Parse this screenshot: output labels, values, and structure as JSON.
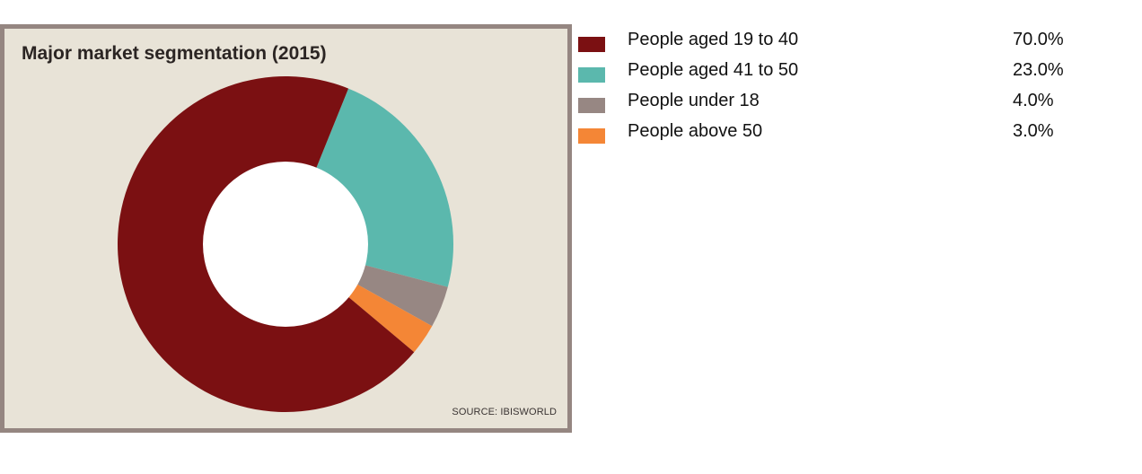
{
  "chart_data": {
    "type": "pie",
    "title": "Major market segmentation (2015)",
    "source": "SOURCE: IBISWORLD",
    "donut": true,
    "start_angle_deg": -68,
    "categories": [
      "People aged 19 to 40",
      "People aged 41 to 50",
      "People under 18",
      "People above 50"
    ],
    "values": [
      70.0,
      23.0,
      4.0,
      3.0
    ],
    "value_labels": [
      "70.0%",
      "23.0%",
      "4.0%",
      "3.0%"
    ],
    "colors": [
      "#7b1012",
      "#5bb8ad",
      "#978783",
      "#f48636"
    ],
    "draw_order": [
      1,
      2,
      3,
      0
    ],
    "legend_position": "right"
  },
  "colors": {
    "panel_background": "#e8e3d7",
    "panel_border": "#958681"
  }
}
